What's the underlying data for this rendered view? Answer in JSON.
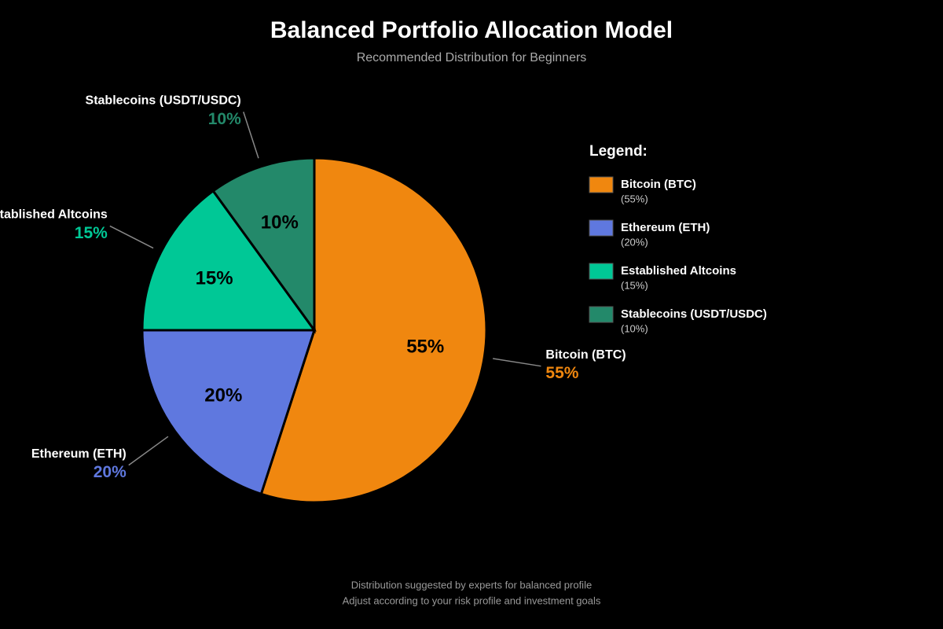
{
  "chart_data": {
    "type": "pie",
    "title": "Balanced Portfolio Allocation Model",
    "subtitle": "Recommended Distribution for Beginners",
    "categories": [
      "Bitcoin (BTC)",
      "Ethereum (ETH)",
      "Established Altcoins",
      "Stablecoins (USDT/USDC)"
    ],
    "values": [
      55,
      20,
      15,
      10
    ],
    "value_labels": [
      "55%",
      "20%",
      "15%",
      "10%"
    ],
    "colors": [
      "#f0870f",
      "#5f78df",
      "#00c896",
      "#23896a"
    ],
    "legend_title": "Legend:",
    "legend_value_labels": [
      "(55%)",
      "(20%)",
      "(15%)",
      "(10%)"
    ],
    "notes": [
      "Distribution suggested by experts for balanced profile",
      "Adjust according to your risk profile and investment goals"
    ]
  }
}
